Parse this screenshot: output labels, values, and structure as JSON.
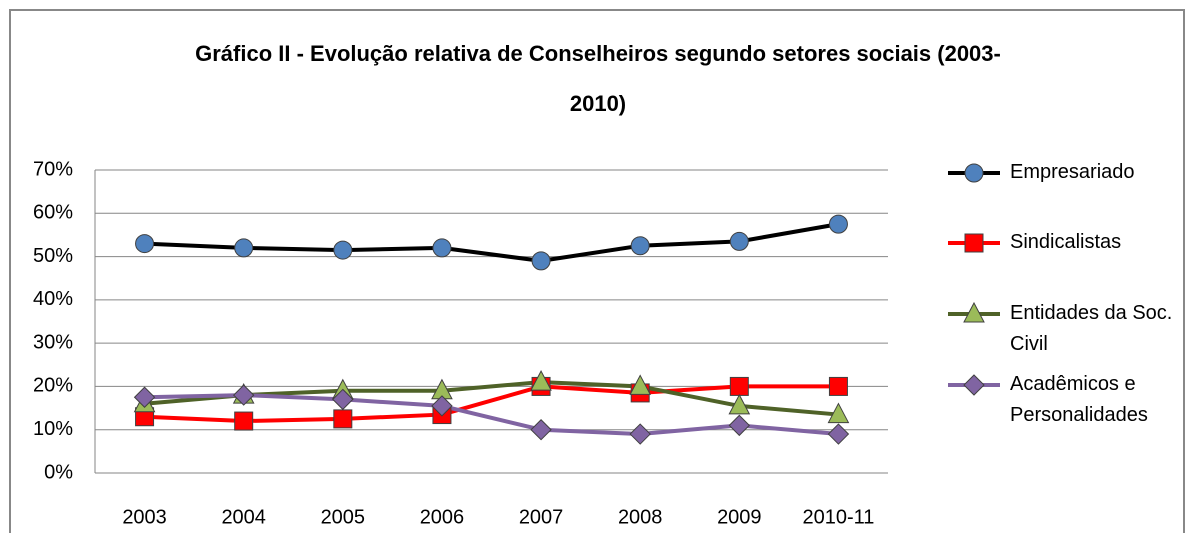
{
  "chart_data": {
    "type": "line",
    "title": [
      "Gráfico II - Evolução relativa de Conselheiros segundo setores sociais (2003-",
      "2010)"
    ],
    "categories": [
      "2003",
      "2004",
      "2005",
      "2006",
      "2007",
      "2008",
      "2009",
      "2010-11"
    ],
    "series": [
      {
        "name": "Empresariado",
        "color": "#000000",
        "marker": "circle",
        "marker_color": "#4f81bd",
        "values": [
          53,
          52,
          51.5,
          52,
          49,
          52.5,
          53.5,
          57.5
        ]
      },
      {
        "name": "Sindicalistas",
        "color": "#ff0000",
        "marker": "square",
        "marker_color": "#ff0000",
        "values": [
          13,
          12,
          12.5,
          13.5,
          20,
          18.5,
          20,
          20
        ]
      },
      {
        "name": "Entidades da Soc. Civil",
        "color": "#4f6228",
        "marker": "triangle",
        "marker_color": "#9bbb59",
        "values": [
          16,
          18,
          19,
          19,
          21,
          20,
          15.5,
          13.5
        ]
      },
      {
        "name": "Acadêmicos e Personalidades",
        "color": "#8064a2",
        "marker": "diamond",
        "marker_color": "#8064a2",
        "values": [
          17.5,
          18,
          17,
          15.5,
          10,
          9,
          11,
          9
        ]
      }
    ],
    "ylim": [
      0,
      70
    ],
    "yticks": [
      {
        "value": 0,
        "label": "0%"
      },
      {
        "value": 10,
        "label": "10%"
      },
      {
        "value": 20,
        "label": "20%"
      },
      {
        "value": 30,
        "label": "30%"
      },
      {
        "value": 40,
        "label": "40%"
      },
      {
        "value": 50,
        "label": "50%"
      },
      {
        "value": 60,
        "label": "60%"
      },
      {
        "value": 70,
        "label": "70%"
      }
    ],
    "grid": true,
    "legend": "right"
  }
}
